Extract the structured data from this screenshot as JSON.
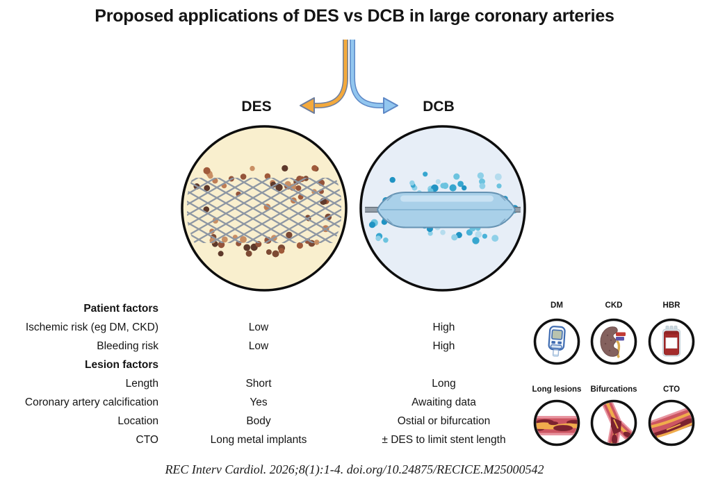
{
  "title": "Proposed applications of DES vs DCB in large coronary arteries",
  "groups": {
    "des_label": "DES",
    "dcb_label": "DCB"
  },
  "table": {
    "rows": [
      {
        "label": "Patient factors",
        "des": "",
        "dcb": ""
      },
      {
        "label": "Ischemic risk (eg DM, CKD)",
        "des": "Low",
        "dcb": "High"
      },
      {
        "label": "Bleeding risk",
        "des": "Low",
        "dcb": "High"
      },
      {
        "label": "Lesion factors",
        "des": "",
        "dcb": ""
      },
      {
        "label": "Length",
        "des": "Short",
        "dcb": "Long"
      },
      {
        "label": "Coronary artery calcification",
        "des": "Yes",
        "dcb": "Awaiting data"
      },
      {
        "label": "Location",
        "des": "Body",
        "dcb": "Ostial or bifurcation"
      },
      {
        "label": "CTO",
        "des": "Long metal implants",
        "dcb": "± DES to limit stent length"
      }
    ]
  },
  "icon_panels": {
    "patient": [
      {
        "label": "DM"
      },
      {
        "label": "CKD"
      },
      {
        "label": "HBR"
      }
    ],
    "lesion": [
      {
        "label": "Long lesions"
      },
      {
        "label": "Bifurcations"
      },
      {
        "label": "CTO"
      }
    ]
  },
  "citation": "REC Interv Cardiol. 2026;8(1):1-4. doi.org/10.24875/RECICE.M25000542",
  "colors": {
    "des_arrow": "#F3A93C",
    "des_arrow_border": "#6E7E9D",
    "dcb_arrow": "#92C6EF",
    "dcb_arrow_border": "#5D88C6",
    "des_circle_bg": "#F9EFCE",
    "dcb_circle_bg": "#E7EEF7",
    "circle_border": "#0D0D0D",
    "stent_mesh": "#8E97A3",
    "balloon_fill": "#A9D0E9",
    "balloon_border": "#6592B2",
    "des_dots": [
      "#BF7D55",
      "#A05A3A",
      "#7D4A34",
      "#5E392B",
      "#C98F64",
      "#94543B"
    ],
    "dcb_dots": [
      "#8FD0E8",
      "#4AB2D8",
      "#2093C3",
      "#6CC3DF",
      "#B5DCEE",
      "#37A6CF"
    ]
  }
}
